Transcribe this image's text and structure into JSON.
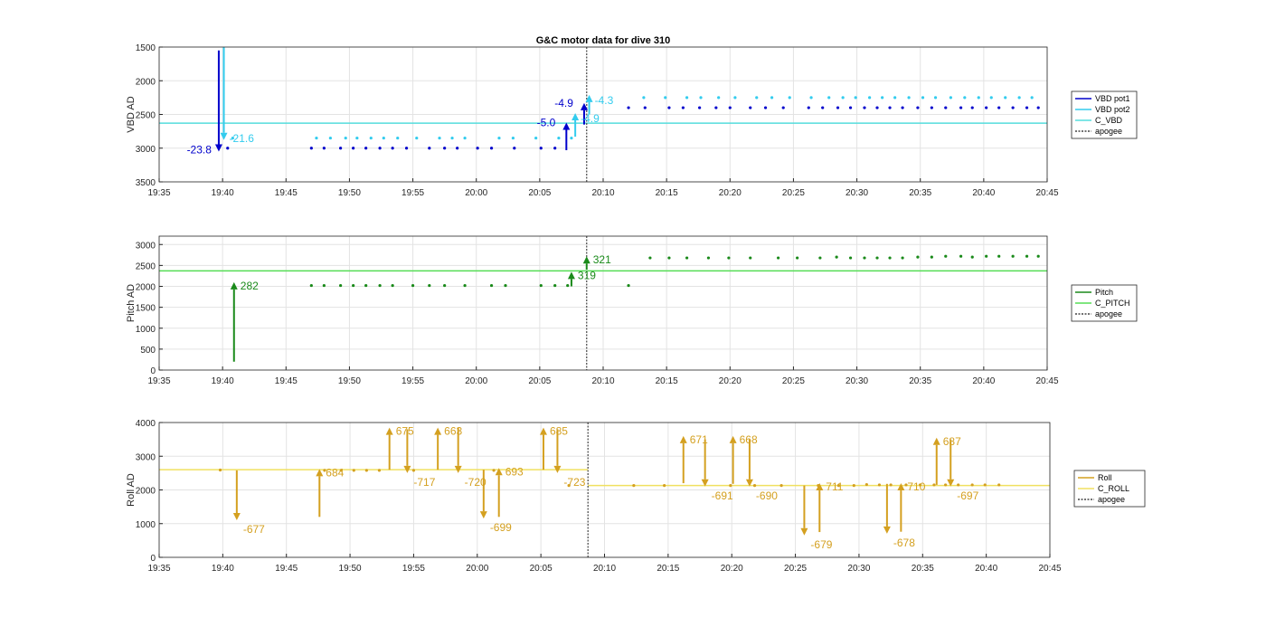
{
  "chart_data": [
    {
      "type": "scatter",
      "title": "G&C motor data for dive 310",
      "ylabel": "VBD AD",
      "y_reversed": true,
      "ylim": [
        1500,
        3500
      ],
      "yticks": [
        1500,
        2000,
        2500,
        3000,
        3500
      ],
      "xticks": [
        "19:35",
        "19:40",
        "19:45",
        "19:50",
        "19:55",
        "20:00",
        "20:05",
        "20:10",
        "20:15",
        "20:20",
        "20:25",
        "20:30",
        "20:35",
        "20:40",
        "20:45"
      ],
      "xlim_min": [
        0,
        70
      ],
      "grid": true,
      "legend_position": "right",
      "legend": [
        "VBD pot1",
        "VBD pot2",
        "C_VBD",
        "apogee"
      ],
      "colors": {
        "pot1": "#0000cc",
        "pot2": "#33ccee",
        "c": "#55dddd",
        "apogee": "#444444"
      },
      "apogee_min": 33.7,
      "reference": [
        {
          "name": "C_VBD",
          "y": 2630
        }
      ],
      "series": [
        {
          "name": "VBD pot1",
          "x": [
            5.4,
            12,
            13,
            14.3,
            15.3,
            16.3,
            17.4,
            18.4,
            19.5,
            21.3,
            22.5,
            23.5,
            25.1,
            26.2,
            28,
            30.1,
            31.2,
            37,
            38.3,
            40.2,
            41.3,
            42.6,
            43.9,
            45,
            46.6,
            47.8,
            49.2,
            51.2,
            52.3,
            53.5,
            54.5,
            55.6,
            56.6,
            57.6,
            58.6,
            59.8,
            60.9,
            62,
            63.2,
            64.1,
            65.2,
            66.2,
            67.3,
            68.4,
            69.3
          ],
          "y": [
            3000,
            3000,
            3000,
            3000,
            3000,
            3000,
            3000,
            3000,
            3000,
            3000,
            3000,
            3000,
            3000,
            3000,
            3000,
            3000,
            3000,
            2400,
            2400,
            2400,
            2400,
            2400,
            2400,
            2400,
            2400,
            2400,
            2400,
            2400,
            2400,
            2400,
            2400,
            2400,
            2400,
            2400,
            2400,
            2400,
            2400,
            2400,
            2400,
            2400,
            2400,
            2400,
            2400,
            2400,
            2400
          ]
        },
        {
          "name": "VBD pot2",
          "x": [
            5.8,
            12.4,
            13.5,
            14.7,
            15.6,
            16.7,
            17.7,
            18.8,
            20.3,
            22.1,
            23.1,
            24.1,
            26.8,
            27.9,
            29.7,
            31.5,
            32.5,
            38.2,
            39.9,
            41.6,
            42.7,
            44.1,
            45.4,
            47.1,
            48.3,
            49.7,
            51.4,
            52.8,
            53.9,
            54.9,
            56,
            57,
            58,
            59.1,
            60.2,
            61.2,
            62.4,
            63.5,
            64.6,
            65.6,
            66.7,
            67.8,
            68.8
          ],
          "y": [
            2850,
            2850,
            2850,
            2850,
            2850,
            2850,
            2850,
            2850,
            2850,
            2850,
            2850,
            2850,
            2850,
            2850,
            2850,
            2850,
            2850,
            2250,
            2250,
            2250,
            2250,
            2250,
            2250,
            2250,
            2250,
            2250,
            2250,
            2250,
            2250,
            2250,
            2250,
            2250,
            2250,
            2250,
            2250,
            2250,
            2250,
            2250,
            2250,
            2250,
            2250,
            2250,
            2250
          ]
        },
        {
          "name": "VBD pot1 moves",
          "x": [
            4.7,
            32.1,
            33.5
          ],
          "y_from": [
            1550,
            3030,
            2650
          ],
          "y_to": [
            3050,
            2620,
            2330
          ],
          "labels": [
            "-23.8",
            "-5.0",
            "-4.9"
          ]
        },
        {
          "name": "VBD pot2 moves",
          "x": [
            5.1,
            32.8,
            33.9
          ],
          "y_from": [
            1500,
            2830,
            2500
          ],
          "y_to": [
            2880,
            2480,
            2210
          ],
          "labels": [
            "-21.6",
            "-4.9",
            "-4.3"
          ]
        }
      ]
    },
    {
      "type": "scatter",
      "ylabel": "Pitch AD",
      "ylim": [
        0,
        3200
      ],
      "yticks": [
        0,
        500,
        1000,
        1500,
        2000,
        2500,
        3000
      ],
      "xticks": [
        "19:35",
        "19:40",
        "19:45",
        "19:50",
        "19:55",
        "20:00",
        "20:05",
        "20:10",
        "20:15",
        "20:20",
        "20:25",
        "20:30",
        "20:35",
        "20:40",
        "20:45"
      ],
      "xlim_min": [
        0,
        70
      ],
      "grid": true,
      "legend_position": "right",
      "legend": [
        "Pitch",
        "C_PITCH",
        "apogee"
      ],
      "colors": {
        "pitch": "#1a8a1a",
        "c": "#55dd55",
        "apogee": "#444444"
      },
      "apogee_min": 33.7,
      "reference": [
        {
          "name": "C_PITCH",
          "y": 2370
        }
      ],
      "series": [
        {
          "name": "Pitch",
          "x": [
            12,
            13,
            14.3,
            15.3,
            16.3,
            17.4,
            18.4,
            20,
            21.3,
            22.5,
            24.1,
            26.2,
            27.3,
            30.1,
            31.2,
            32.2,
            37,
            38.7,
            40.2,
            41.6,
            43.3,
            44.9,
            46.6,
            48.8,
            50.3,
            52.1,
            53.4,
            54.5,
            55.6,
            56.6,
            57.6,
            58.6,
            59.8,
            60.9,
            62,
            63.2,
            64.1,
            65.2,
            66.2,
            67.3,
            68.4,
            69.3
          ],
          "y": [
            2020,
            2020,
            2020,
            2020,
            2020,
            2020,
            2020,
            2020,
            2020,
            2020,
            2020,
            2020,
            2020,
            2020,
            2020,
            2020,
            2020,
            2680,
            2680,
            2680,
            2680,
            2680,
            2680,
            2680,
            2680,
            2680,
            2700,
            2680,
            2680,
            2680,
            2680,
            2680,
            2700,
            2700,
            2720,
            2720,
            2700,
            2720,
            2720,
            2720,
            2720,
            2720
          ]
        },
        {
          "name": "Pitch moves",
          "x": [
            5.9,
            32.5,
            33.7
          ],
          "y_from": [
            200,
            2000,
            2400
          ],
          "y_to": [
            2100,
            2350,
            2720
          ],
          "labels": [
            "282",
            "319",
            "321"
          ]
        }
      ]
    },
    {
      "type": "scatter",
      "ylabel": "Roll AD",
      "ylim": [
        0,
        4000
      ],
      "yticks": [
        0,
        1000,
        2000,
        3000,
        4000
      ],
      "xticks": [
        "19:35",
        "19:40",
        "19:45",
        "19:50",
        "19:55",
        "20:00",
        "20:05",
        "20:10",
        "20:15",
        "20:20",
        "20:25",
        "20:30",
        "20:35",
        "20:40",
        "20:45"
      ],
      "xlim_min": [
        0,
        70
      ],
      "grid": true,
      "legend_position": "right",
      "legend": [
        "Roll",
        "C_ROLL",
        "apogee"
      ],
      "colors": {
        "roll": "#d4a020",
        "c": "#f0e060",
        "apogee": "#444444"
      },
      "apogee_min": 33.7,
      "reference": [
        {
          "name": "C_ROLL",
          "y_segments": [
            {
              "x0": 0,
              "x1": 33.7,
              "y": 2600
            },
            {
              "x0": 33.7,
              "x1": 70,
              "y": 2130
            }
          ]
        }
      ],
      "series": [
        {
          "name": "Roll",
          "x": [
            4.8,
            13,
            14.3,
            15.3,
            16.3,
            17.3,
            20,
            26.3,
            32.2,
            37.3,
            39.7,
            44.9,
            46.8,
            48.9,
            51.8,
            53.4,
            54.6,
            55.6,
            56.6,
            57.5,
            58.7,
            59.8,
            60.9,
            61.8,
            62.8,
            63.9,
            64.9,
            66
          ],
          "y": [
            2590,
            2580,
            2580,
            2580,
            2580,
            2580,
            2580,
            2580,
            2130,
            2130,
            2130,
            2130,
            2130,
            2130,
            2130,
            2130,
            2130,
            2160,
            2150,
            2150,
            2150,
            2150,
            2150,
            2150,
            2150,
            2150,
            2150,
            2150
          ]
        },
        {
          "name": "Roll moves",
          "x": [
            6.1,
            12.6,
            18.1,
            19.5,
            21.9,
            23.5,
            25.5,
            26.7,
            30.2,
            31.3,
            41.2,
            42.9,
            45.1,
            46.4,
            50.7,
            51.9,
            57.2,
            58.3,
            61.1,
            62.2
          ],
          "y_from": [
            2580,
            1200,
            2600,
            3800,
            2600,
            3850,
            2600,
            1200,
            2600,
            3800,
            2200,
            3500,
            2180,
            3500,
            2130,
            750,
            2180,
            760,
            2150,
            3500
          ],
          "y_to": [
            1100,
            2620,
            3850,
            2500,
            3850,
            2500,
            1150,
            2650,
            3850,
            2500,
            3600,
            2100,
            3600,
            2100,
            650,
            2200,
            700,
            2200,
            3550,
            2100
          ],
          "labels": [
            "-677",
            "684",
            "675",
            "-717",
            "663",
            "-720",
            "-699",
            "693",
            "685",
            "-723",
            "671",
            "-691",
            "668",
            "-690",
            "-679",
            "711",
            "-678",
            "710",
            "687",
            "-697"
          ]
        }
      ]
    }
  ]
}
